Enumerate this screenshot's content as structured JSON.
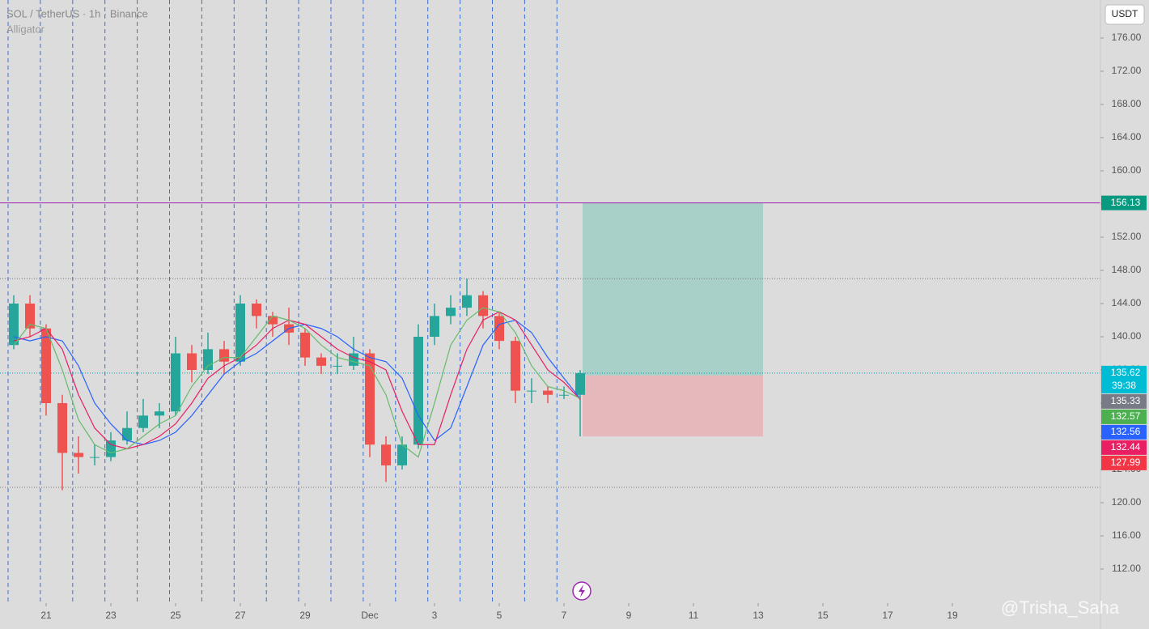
{
  "header": {
    "symbol": "SOL / TetherUS · 1h · Binance",
    "indicator": "Alligator",
    "currency": "USDT"
  },
  "watermark": "@Trisha_Saha",
  "chart_data": {
    "type": "candlestick",
    "xlim": [
      19.575,
      53.575
    ],
    "ylim": [
      107.9,
      180.585
    ],
    "xticks": [
      21,
      23,
      25,
      27,
      29,
      {
        "value": 31,
        "label": "Dec"
      },
      {
        "value": 33,
        "label": "3"
      },
      {
        "value": 35,
        "label": "5"
      },
      {
        "value": 37,
        "label": "7"
      },
      {
        "value": 39,
        "label": "9"
      },
      {
        "value": 41,
        "label": "11"
      },
      {
        "value": 43,
        "label": "13"
      },
      {
        "value": 45,
        "label": "15"
      },
      {
        "value": 47,
        "label": "17"
      },
      {
        "value": 49,
        "label": "19"
      }
    ],
    "yticks": [
      {
        "value": 112,
        "label": "112.00"
      },
      {
        "value": 116,
        "label": "116.00"
      },
      {
        "value": 120,
        "label": "120.00"
      },
      {
        "value": 124,
        "label": "124.00"
      },
      {
        "value": 128,
        "label": "128.00"
      },
      {
        "value": 132,
        "label": "132.00"
      },
      {
        "value": 136,
        "label": "136.00"
      },
      {
        "value": 140,
        "label": "140.00"
      },
      {
        "value": 144,
        "label": "144.00"
      },
      {
        "value": 148,
        "label": "148.00"
      },
      {
        "value": 152,
        "label": "152.00"
      },
      {
        "value": 156,
        "label": "156.00"
      },
      {
        "value": 160,
        "label": "160.00"
      },
      {
        "value": 164,
        "label": "164.00"
      },
      {
        "value": 168,
        "label": "168.00"
      },
      {
        "value": 172,
        "label": "172.00"
      },
      {
        "value": 176,
        "label": "176.00"
      }
    ],
    "up_color": "#26a69a",
    "down_color": "#ef5350",
    "x": [
      20,
      20.5,
      21,
      21.5,
      22,
      22.5,
      23,
      23.5,
      24,
      24.5,
      25,
      25.5,
      26,
      26.5,
      27,
      27.5,
      28,
      28.5,
      29,
      29.5,
      30,
      30.5,
      31,
      31.5,
      32,
      32.5,
      33,
      33.5,
      34,
      34.5,
      35,
      35.5,
      36,
      36.5,
      37,
      37.5
    ],
    "open": [
      139,
      144,
      141,
      132,
      126,
      125.5,
      125.5,
      127.5,
      129,
      130.5,
      131,
      138,
      136,
      138.5,
      137,
      144,
      142.5,
      141.5,
      140.5,
      137.5,
      136.5,
      136.5,
      138,
      127,
      124.5,
      127,
      140,
      142.5,
      143.5,
      145,
      142.5,
      139.5,
      133.5,
      133.5,
      133,
      133
    ],
    "high": [
      145,
      145,
      141.5,
      133,
      128,
      127,
      128.5,
      131,
      132.5,
      132,
      140,
      139,
      140.5,
      139.5,
      145,
      144.5,
      143,
      143.5,
      141,
      138,
      138,
      140,
      138.5,
      128,
      128,
      141.5,
      144,
      145,
      147,
      145.5,
      143,
      140,
      135,
      134,
      134,
      136
    ],
    "low": [
      138.5,
      140,
      130.5,
      121.5,
      123.5,
      124.5,
      125,
      127,
      128.5,
      129,
      130.5,
      134.5,
      135.5,
      135.5,
      136.5,
      141,
      140,
      139,
      136.5,
      135.5,
      135.5,
      136,
      125.5,
      122.5,
      124,
      126.5,
      139,
      141.5,
      142.5,
      141,
      138.5,
      132,
      132,
      132,
      132.5,
      128
    ],
    "close": [
      144,
      141,
      132,
      126,
      125.5,
      125.5,
      127.5,
      129,
      130.5,
      131,
      138,
      136,
      138.5,
      137,
      144,
      142.5,
      141.5,
      140.5,
      137.5,
      136.5,
      136.5,
      138,
      127,
      124.5,
      127,
      140,
      142.5,
      143.5,
      145,
      142.5,
      139.5,
      133.5,
      133.5,
      133,
      133,
      135.62
    ],
    "series": [
      {
        "name": "Jaw",
        "color": "#2962ff",
        "values": [
          140,
          139.5,
          140,
          139.5,
          136.5,
          132,
          129.5,
          127.5,
          127,
          127.5,
          128.5,
          130.5,
          133,
          135.5,
          137,
          138,
          139.5,
          141,
          141.5,
          141,
          140,
          138.5,
          137.5,
          137,
          135,
          130.5,
          127.5,
          129,
          134,
          139,
          141.5,
          142,
          140.5,
          137.5,
          135,
          132.56
        ]
      },
      {
        "name": "Teeth",
        "color": "#e91e63",
        "values": [
          139.5,
          140,
          141,
          138.5,
          133,
          129,
          127,
          126.5,
          127,
          128,
          129.5,
          132,
          135,
          136.5,
          137.5,
          139,
          141,
          142,
          141.5,
          140,
          138.5,
          137.5,
          137,
          136,
          131,
          127,
          127,
          133,
          138.5,
          142,
          143,
          142,
          139,
          136,
          134.5,
          132.44
        ]
      },
      {
        "name": "Lips",
        "color": "#66bb6a",
        "values": [
          139,
          141.5,
          141,
          136,
          130,
          127,
          126,
          126.5,
          128,
          129.5,
          130.5,
          134,
          136.5,
          137.5,
          137.5,
          140,
          142.5,
          142,
          141,
          139,
          137.5,
          137,
          136.5,
          133,
          127,
          125.5,
          132,
          139,
          142,
          143.5,
          143,
          140.5,
          136.5,
          134,
          133.5,
          132.57
        ]
      }
    ],
    "levels": [
      {
        "value": 156.13,
        "color": "#9c27b0",
        "style": "solid"
      },
      {
        "value": 147,
        "color": "#777777",
        "style": "dotted"
      },
      {
        "value": 121.85,
        "color": "#777777",
        "style": "dotted"
      },
      {
        "value": 135.62,
        "color": "#00a3b8",
        "style": "dotted"
      }
    ],
    "position": {
      "target": 156.13,
      "entry": 135.33,
      "stop": 127.99,
      "x_start": 37.575,
      "x_end": 43.15,
      "profit_color": "#a8cfc8",
      "loss_color": "#e5b8bc"
    },
    "price_labels": [
      {
        "value": 156.13,
        "color": "#089981"
      },
      {
        "value": 135.62,
        "color": "#00bcd4",
        "countdown": "39:38"
      },
      {
        "value": 135.33,
        "color": "#787b86"
      },
      {
        "value": 132.57,
        "color": "#4caf50"
      },
      {
        "value": 132.56,
        "color": "#2962ff"
      },
      {
        "value": 132.44,
        "color": "#e91e63"
      },
      {
        "value": 127.99,
        "color": "#f23645"
      }
    ]
  }
}
